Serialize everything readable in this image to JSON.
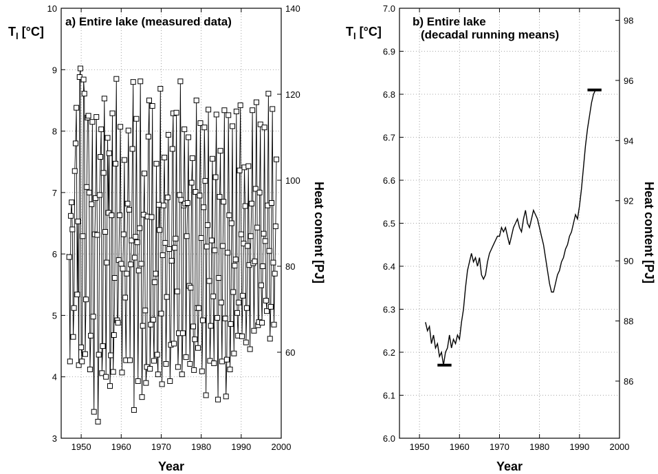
{
  "chart_data": [
    {
      "type": "line",
      "panel": "a",
      "title": "a) Entire lake (measured data)",
      "xlabel": "Year",
      "ylabel_left": "T",
      "ylabel_left_sub": "l",
      "ylabel_left_unit": " [°C]",
      "ylabel_right": "Heat content [PJ]",
      "xlim": [
        1945,
        2000
      ],
      "ylim_left": [
        3,
        10
      ],
      "ylim_right": [
        40,
        140
      ],
      "x_ticks": [
        1950,
        1960,
        1970,
        1980,
        1990,
        2000
      ],
      "y_ticks_left": [
        3,
        4,
        5,
        6,
        7,
        8,
        9,
        10
      ],
      "y_ticks_right": [
        60,
        80,
        100,
        120,
        140
      ],
      "x_grid": [
        1950,
        1960,
        1970,
        1980,
        1990
      ],
      "y_grid": [
        4,
        5,
        6,
        7,
        8,
        9
      ],
      "marker": "square",
      "series": [
        {
          "x": [
            1947.0,
            1947.2,
            1947.4,
            1947.6,
            1947.8,
            1948.0,
            1948.2,
            1948.4,
            1948.6,
            1948.8,
            1949.0,
            1949.2,
            1949.4,
            1949.6,
            1949.8,
            1950.0,
            1950.2,
            1950.4,
            1950.6,
            1950.8,
            1951.0,
            1951.2,
            1951.4,
            1951.6,
            1951.8,
            1952.0,
            1952.2,
            1952.4,
            1952.6,
            1952.8,
            1953.0,
            1953.2,
            1953.4,
            1953.6,
            1953.8,
            1954.0,
            1954.2,
            1954.4,
            1954.6,
            1954.8,
            1955.0,
            1955.2,
            1955.4,
            1955.6,
            1955.8,
            1956.0,
            1956.2,
            1956.4,
            1956.6,
            1956.8,
            1957.0,
            1957.2,
            1957.4,
            1957.6,
            1957.8,
            1958.0,
            1958.2,
            1958.4,
            1958.6,
            1958.8,
            1959.0,
            1959.2,
            1959.4,
            1959.6,
            1959.8,
            1960.0,
            1960.2,
            1960.4,
            1960.6,
            1960.8,
            1961.0,
            1961.2,
            1961.4,
            1961.6,
            1961.8,
            1962.0,
            1962.2,
            1962.4,
            1962.6,
            1962.8,
            1963.0,
            1963.2,
            1963.4,
            1963.6,
            1963.8,
            1964.0,
            1964.2,
            1964.4,
            1964.6,
            1964.8,
            1965.0,
            1965.2,
            1965.4,
            1965.6,
            1965.8,
            1966.0,
            1966.2,
            1966.4,
            1966.6,
            1966.8,
            1967.0,
            1967.2,
            1967.4,
            1967.6,
            1967.8,
            1968.0,
            1968.2,
            1968.4,
            1968.6,
            1968.8,
            1969.0,
            1969.2,
            1969.4,
            1969.6,
            1969.8,
            1970.0,
            1970.2,
            1970.4,
            1970.6,
            1970.8,
            1971.0,
            1971.2,
            1971.4,
            1971.6,
            1971.8,
            1972.0,
            1972.2,
            1972.4,
            1972.6,
            1972.8,
            1973.0,
            1973.2,
            1973.4,
            1973.6,
            1973.8,
            1974.0,
            1974.2,
            1974.4,
            1974.6,
            1974.8,
            1975.0,
            1975.2,
            1975.4,
            1975.6,
            1975.8,
            1976.0,
            1976.2,
            1976.4,
            1976.6,
            1976.8,
            1977.0,
            1977.2,
            1977.4,
            1977.6,
            1977.8,
            1978.0,
            1978.2,
            1978.4,
            1978.6,
            1978.8,
            1979.0,
            1979.2,
            1979.4,
            1979.6,
            1979.8,
            1980.0,
            1980.2,
            1980.4,
            1980.6,
            1980.8,
            1981.0,
            1981.2,
            1981.4,
            1981.6,
            1981.8,
            1982.0,
            1982.2,
            1982.4,
            1982.6,
            1982.8,
            1983.0,
            1983.2,
            1983.4,
            1983.6,
            1983.8,
            1984.0,
            1984.2,
            1984.4,
            1984.6,
            1984.8,
            1985.0,
            1985.2,
            1985.4,
            1985.6,
            1985.8,
            1986.0,
            1986.2,
            1986.4,
            1986.6,
            1986.8,
            1987.0,
            1987.2,
            1987.4,
            1987.6,
            1987.8,
            1988.0,
            1988.2,
            1988.4,
            1988.6,
            1988.8,
            1989.0,
            1989.2,
            1989.4,
            1989.6,
            1989.8,
            1990.0,
            1990.2,
            1990.4,
            1990.6,
            1990.8,
            1991.0,
            1991.2,
            1991.4,
            1991.6,
            1991.8,
            1992.0,
            1992.2,
            1992.4,
            1992.6,
            1992.8,
            1993.0,
            1993.2,
            1993.4,
            1993.6,
            1993.8,
            1994.0,
            1994.2,
            1994.4,
            1994.6,
            1994.8,
            1995.0,
            1995.2,
            1995.4,
            1995.6,
            1995.8,
            1996.0,
            1996.2,
            1996.4,
            1996.6,
            1996.8,
            1997.0,
            1997.2,
            1997.4,
            1997.6,
            1997.8,
            1998.0,
            1998.2,
            1998.4,
            1998.6,
            1998.8
          ],
          "y": [
            5.95,
            4.25,
            6.62,
            6.84,
            6.4,
            4.65,
            5.12,
            7.35,
            7.8,
            8.38,
            5.34,
            6.53,
            4.19,
            8.88,
            9.02,
            4.48,
            4.25,
            6.29,
            8.84,
            8.61,
            4.37,
            5.26,
            7.09,
            8.22,
            8.25,
            7.0,
            4.12,
            4.67,
            6.81,
            8.15,
            4.98,
            3.43,
            6.32,
            6.91,
            8.23,
            6.31,
            3.27,
            4.36,
            6.96,
            7.58,
            8.03,
            4.06,
            4.5,
            7.32,
            8.53,
            6.36,
            4.0,
            5.86,
            7.89,
            6.67,
            7.64,
            3.85,
            4.35,
            6.63,
            8.29,
            4.08,
            4.68,
            5.61,
            7.47,
            8.85,
            4.92,
            4.88,
            5.9,
            6.63,
            8.07,
            5.84,
            4.07,
            5.76,
            6.32,
            7.53,
            5.29,
            4.27,
            5.68,
            6.82,
            8.01,
            6.72,
            4.27,
            5.83,
            6.22,
            7.71,
            8.8,
            3.46,
            5.94,
            6.28,
            8.2,
            6.19,
            3.93,
            5.73,
            6.42,
            8.81,
            5.84,
            3.67,
            4.83,
            6.64,
            7.31,
            5.08,
            3.9,
            4.16,
            6.61,
            7.91,
            8.5,
            4.13,
            4.85,
            6.6,
            8.41,
            4.93,
            4.26,
            5.54,
            5.68,
            7.47,
            4.36,
            4.04,
            6.8,
            6.39,
            8.69,
            5.03,
            3.88,
            5.98,
            6.79,
            7.57,
            6.18,
            4.21,
            5.3,
            6.92,
            7.94,
            6.08,
            3.93,
            4.52,
            5.89,
            7.71,
            8.29,
            4.54,
            6.1,
            6.25,
            8.3,
            5.39,
            4.16,
            4.71,
            6.96,
            8.81,
            6.88,
            4.04,
            4.71,
            6.79,
            8.03,
            6.82,
            4.32,
            6.29,
            6.83,
            7.9,
            5.48,
            4.21,
            5.45,
            7.16,
            7.56,
            4.82,
            4.11,
            4.61,
            7.01,
            8.5,
            5.12,
            4.47,
            5.12,
            6.95,
            8.13,
            6.26,
            4.09,
            4.92,
            6.76,
            8.06,
            7.19,
            3.7,
            6.12,
            6.47,
            8.35,
            5.56,
            4.26,
            4.83,
            6.22,
            7.55,
            5.31,
            4.22,
            6.06,
            7.25,
            8.27,
            4.96,
            3.63,
            5.61,
            6.93,
            7.68,
            5.21,
            4.25,
            6.13,
            6.85,
            8.34,
            4.95,
            3.68,
            4.28,
            6.02,
            8.26,
            6.63,
            4.12,
            4.86,
            6.5,
            8.08,
            5.38,
            4.38,
            5.81,
            5.91,
            8.32,
            5.04,
            4.67,
            5.21,
            7.36,
            8.42,
            6.32,
            4.66,
            5.32,
            6.17,
            7.41,
            6.78,
            4.56,
            5.12,
            6.13,
            7.43,
            5.82,
            4.45,
            6.29,
            6.82,
            8.34,
            5.85,
            4.75,
            5.88,
            7.06,
            8.47,
            6.43,
            4.84,
            4.89,
            7.0,
            8.11,
            5.49,
            4.88,
            5.8,
            6.33,
            8.06,
            6.21,
            5.24,
            5.07,
            6.79,
            8.61,
            6.05,
            4.62,
            5.14,
            6.83,
            8.36,
            5.86,
            4.85,
            5.68,
            6.45,
            7.54
          ]
        }
      ]
    },
    {
      "type": "line",
      "panel": "b",
      "title": "b) Entire lake",
      "subtitle": "(decadal running means)",
      "xlabel": "Year",
      "ylabel_left": "T",
      "ylabel_left_sub": "l",
      "ylabel_left_unit": " [°C]",
      "ylabel_right": "Heat content [PJ]",
      "xlim": [
        1945,
        2000
      ],
      "ylim_left": [
        6.0,
        7.0
      ],
      "ylim_right": [
        84.1,
        98.4
      ],
      "x_ticks": [
        1950,
        1960,
        1970,
        1980,
        1990,
        2000
      ],
      "y_ticks_left": [
        6.0,
        6.1,
        6.2,
        6.3,
        6.4,
        6.5,
        6.6,
        6.7,
        6.8,
        6.9,
        7.0
      ],
      "y_ticks_right": [
        86,
        88,
        90,
        92,
        94,
        96,
        98
      ],
      "x_grid": [
        1950,
        1960,
        1970,
        1980,
        1990
      ],
      "y_grid": [
        6.1,
        6.2,
        6.3,
        6.4,
        6.5,
        6.6,
        6.7,
        6.8,
        6.9
      ],
      "series": [
        {
          "x": [
            1951.5,
            1952.0,
            1952.5,
            1953.0,
            1953.5,
            1954.0,
            1954.5,
            1955.0,
            1955.5,
            1956.0,
            1956.5,
            1957.0,
            1957.5,
            1958.0,
            1958.5,
            1959.0,
            1959.5,
            1960.0,
            1960.5,
            1961.0,
            1961.5,
            1962.0,
            1962.5,
            1963.0,
            1963.5,
            1964.0,
            1964.5,
            1965.0,
            1965.5,
            1966.0,
            1966.5,
            1967.0,
            1967.5,
            1968.0,
            1968.5,
            1969.0,
            1969.5,
            1970.0,
            1970.5,
            1971.0,
            1971.5,
            1972.0,
            1972.5,
            1973.0,
            1973.5,
            1974.0,
            1974.5,
            1975.0,
            1975.5,
            1976.0,
            1976.5,
            1977.0,
            1977.5,
            1978.0,
            1978.5,
            1979.0,
            1979.5,
            1980.0,
            1980.5,
            1981.0,
            1981.5,
            1982.0,
            1982.5,
            1983.0,
            1983.5,
            1984.0,
            1984.5,
            1985.0,
            1985.5,
            1986.0,
            1986.5,
            1987.0,
            1987.5,
            1988.0,
            1988.5,
            1989.0,
            1989.5,
            1990.0,
            1990.5,
            1991.0,
            1991.5,
            1992.0,
            1992.5,
            1993.0,
            1993.5,
            1994.0
          ],
          "y": [
            6.27,
            6.25,
            6.26,
            6.22,
            6.24,
            6.21,
            6.22,
            6.19,
            6.2,
            6.17,
            6.2,
            6.21,
            6.24,
            6.21,
            6.23,
            6.22,
            6.24,
            6.23,
            6.27,
            6.3,
            6.35,
            6.39,
            6.41,
            6.43,
            6.41,
            6.42,
            6.4,
            6.42,
            6.38,
            6.37,
            6.38,
            6.41,
            6.43,
            6.44,
            6.45,
            6.46,
            6.47,
            6.47,
            6.49,
            6.48,
            6.49,
            6.47,
            6.45,
            6.47,
            6.49,
            6.5,
            6.51,
            6.49,
            6.48,
            6.51,
            6.53,
            6.5,
            6.49,
            6.51,
            6.53,
            6.52,
            6.51,
            6.49,
            6.47,
            6.45,
            6.42,
            6.39,
            6.36,
            6.34,
            6.34,
            6.36,
            6.38,
            6.39,
            6.41,
            6.42,
            6.44,
            6.45,
            6.47,
            6.48,
            6.5,
            6.52,
            6.51,
            6.54,
            6.58,
            6.63,
            6.68,
            6.72,
            6.75,
            6.78,
            6.8,
            6.81
          ]
        }
      ],
      "annotations": [
        {
          "type": "bar-marker",
          "x_start": 1954.5,
          "x_end": 1958.0,
          "y": 6.17
        },
        {
          "type": "bar-marker",
          "x_start": 1992.0,
          "x_end": 1995.5,
          "y": 6.81
        }
      ]
    }
  ]
}
